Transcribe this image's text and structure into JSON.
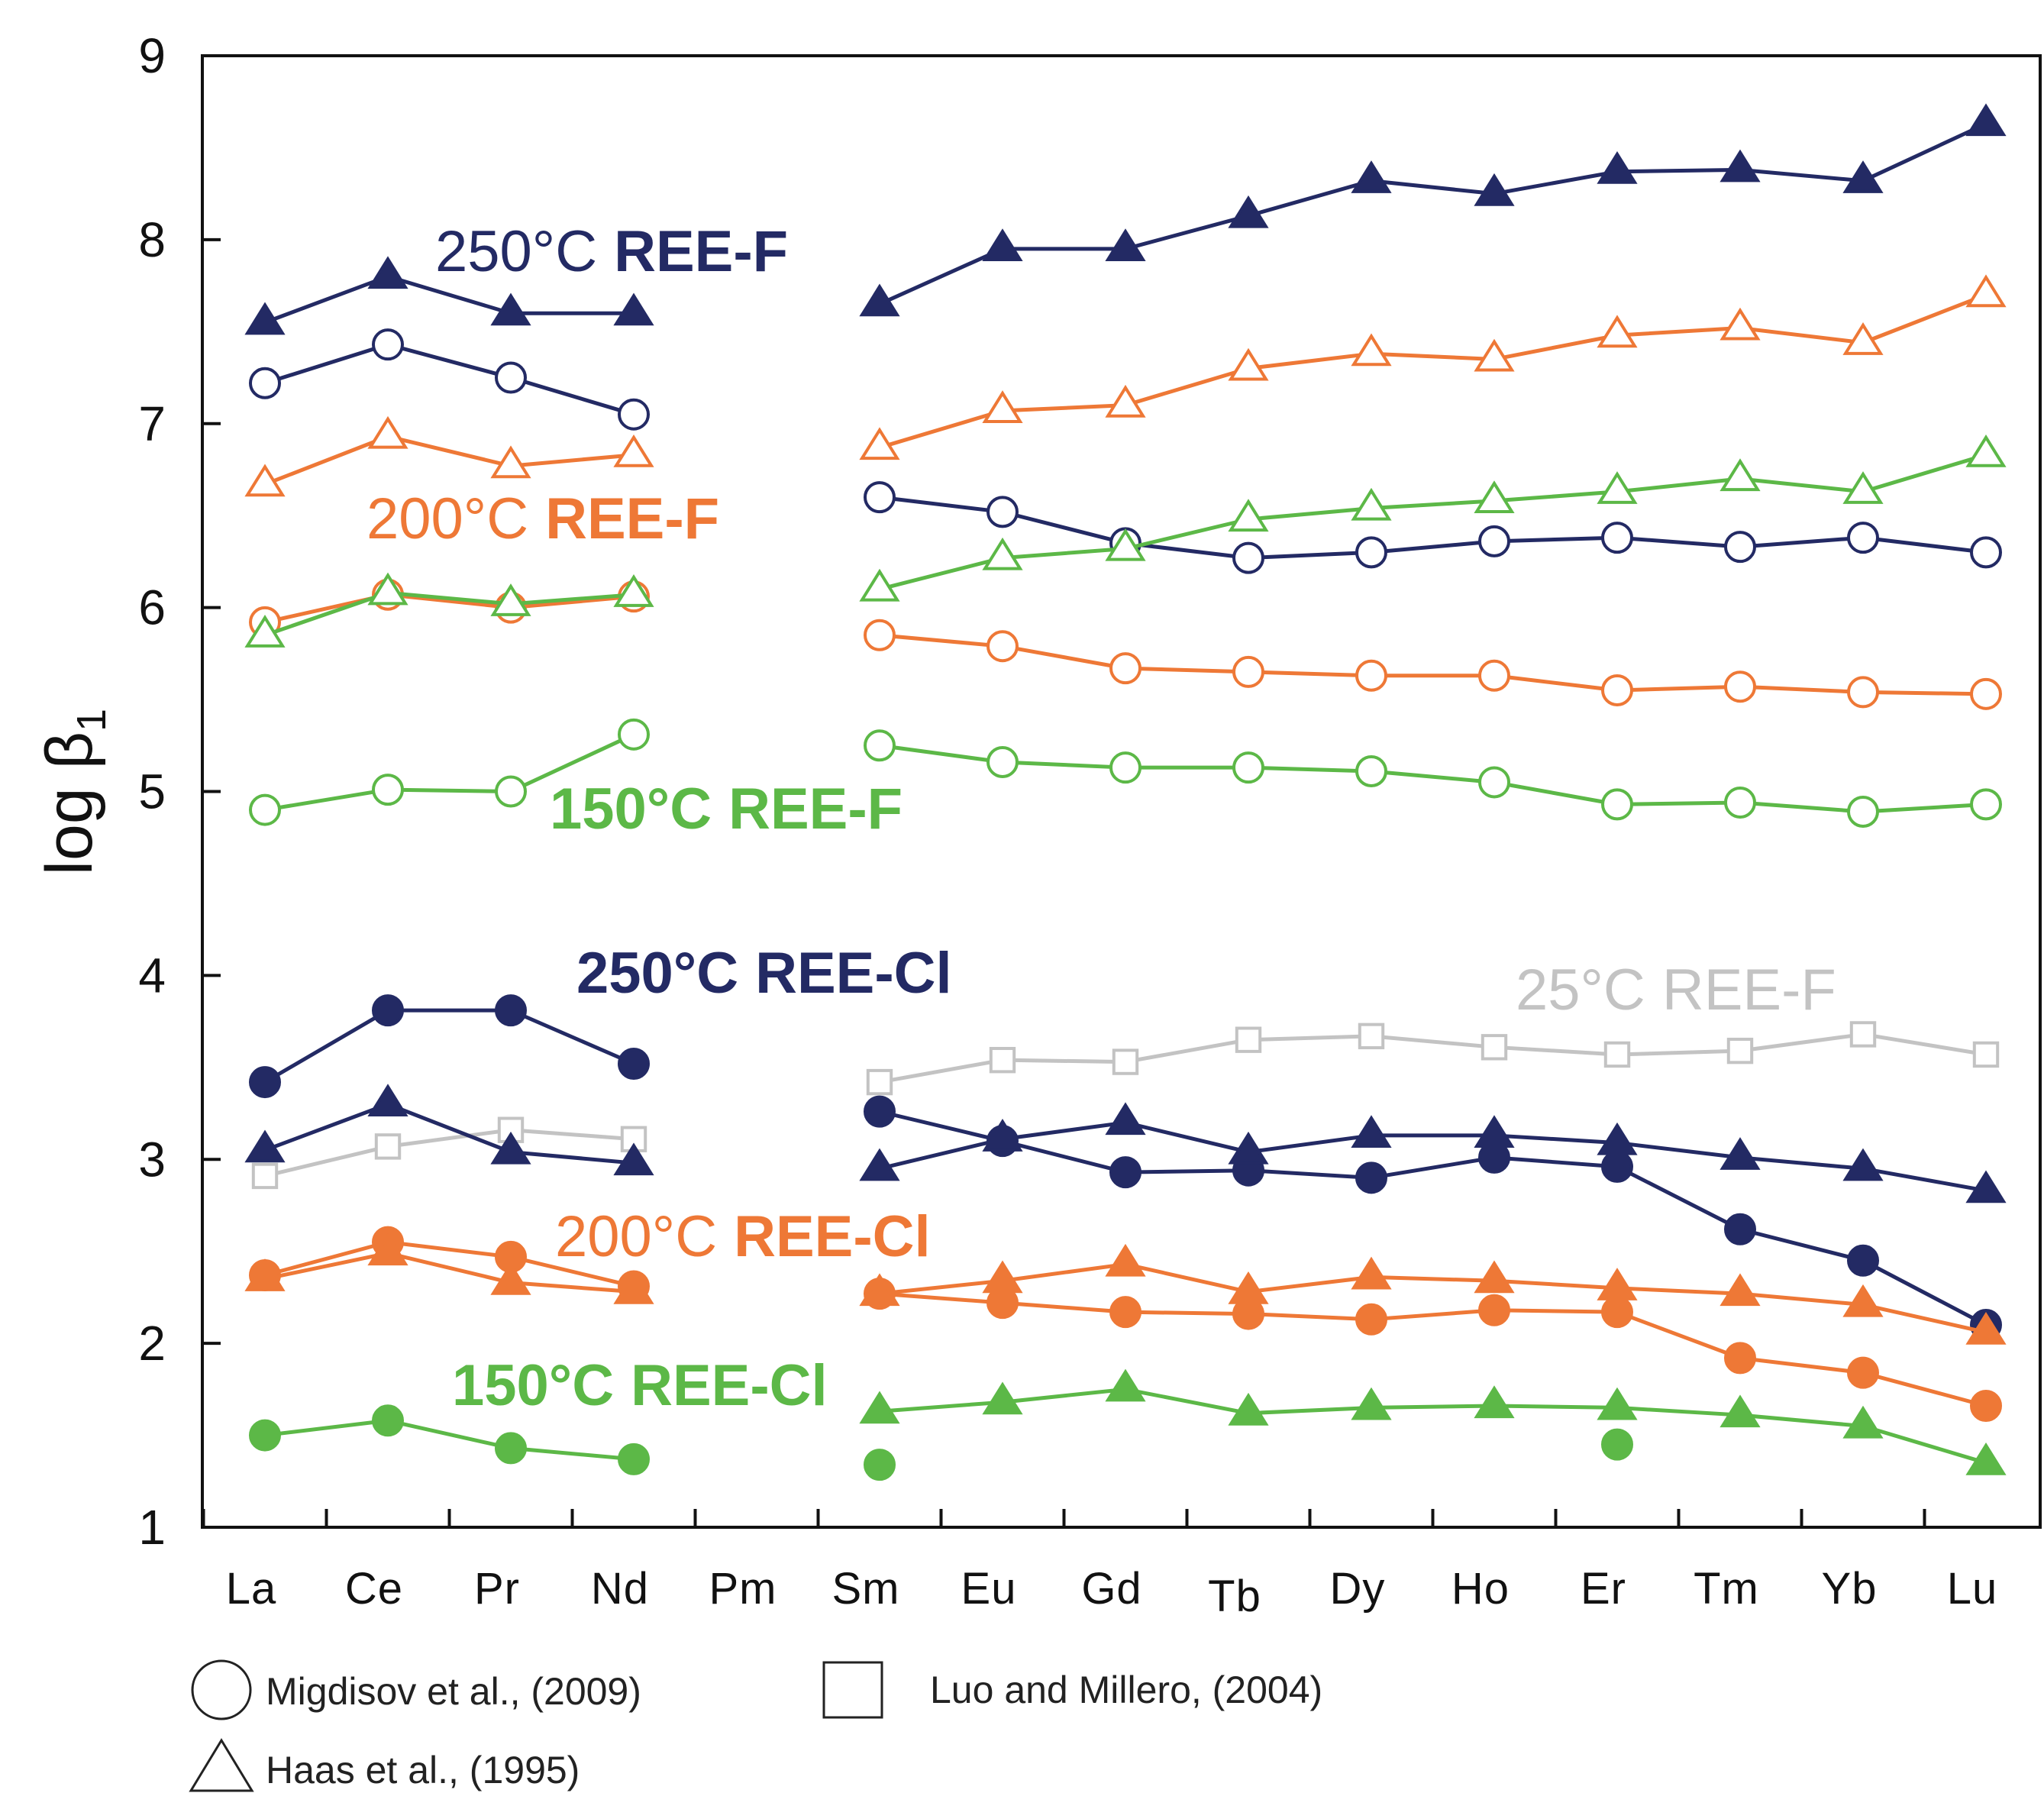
{
  "chart_data": {
    "type": "line",
    "ylabel": "log β",
    "ylabel_subscript": "1",
    "ylim": [
      1,
      9
    ],
    "yticks": [
      1,
      2,
      3,
      4,
      5,
      6,
      7,
      8,
      9
    ],
    "categories": [
      "La",
      "Ce",
      "Pr",
      "Nd",
      "Pm",
      "Sm",
      "Eu",
      "Gd",
      "Tb",
      "Dy",
      "Ho",
      "Er",
      "Tm",
      "Yb",
      "Lu"
    ],
    "colors": {
      "250": "#232a64",
      "200": "#ee7836",
      "150": "#5cb847",
      "25": "#c3c3c3"
    },
    "series": [
      {
        "temp": "250",
        "marker": "triangle",
        "fill": true,
        "values": [
          7.55,
          7.8,
          7.6,
          7.6,
          null,
          7.65,
          7.95,
          7.95,
          8.13,
          8.32,
          8.25,
          8.37,
          8.38,
          8.32,
          8.63
        ]
      },
      {
        "temp": "250",
        "marker": "circle",
        "fill": false,
        "values": [
          7.22,
          7.43,
          7.25,
          7.05,
          null,
          6.6,
          6.52,
          6.35,
          6.27,
          6.3,
          6.36,
          6.38,
          6.33,
          6.38,
          6.3
        ]
      },
      {
        "temp": "200",
        "marker": "triangle",
        "fill": false,
        "values": [
          6.67,
          6.93,
          6.77,
          6.83,
          null,
          6.87,
          7.07,
          7.1,
          7.3,
          7.38,
          7.35,
          7.48,
          7.52,
          7.44,
          7.7
        ]
      },
      {
        "temp": "200",
        "marker": "circle",
        "fill": false,
        "values": [
          5.92,
          6.07,
          6.0,
          6.06,
          null,
          5.85,
          5.79,
          5.67,
          5.65,
          5.63,
          5.63,
          5.55,
          5.57,
          5.54,
          5.53
        ]
      },
      {
        "temp": "150",
        "marker": "triangle",
        "fill": false,
        "values": [
          5.85,
          6.08,
          6.02,
          6.07,
          null,
          6.1,
          6.27,
          6.32,
          6.48,
          6.54,
          6.58,
          6.63,
          6.7,
          6.63,
          6.83
        ]
      },
      {
        "temp": "150",
        "marker": "circle",
        "fill": false,
        "values": [
          4.9,
          5.01,
          5.0,
          5.31,
          null,
          5.25,
          5.16,
          5.13,
          5.13,
          5.11,
          5.05,
          4.93,
          4.94,
          4.89,
          4.93
        ]
      },
      {
        "temp": "25",
        "marker": "square",
        "fill": false,
        "values": [
          2.91,
          3.07,
          3.16,
          3.11,
          null,
          3.42,
          3.54,
          3.53,
          3.65,
          3.67,
          3.61,
          3.57,
          3.59,
          3.68,
          3.57
        ]
      },
      {
        "temp": "250",
        "marker": "circle",
        "fill": true,
        "values": [
          3.42,
          3.81,
          3.81,
          3.52,
          null,
          3.26,
          3.1,
          2.93,
          2.94,
          2.9,
          3.01,
          2.96,
          2.62,
          2.45,
          2.1
        ]
      },
      {
        "temp": "250",
        "marker": "triangle",
        "fill": true,
        "values": [
          3.05,
          3.3,
          3.04,
          2.98,
          null,
          2.95,
          3.11,
          3.2,
          3.04,
          3.13,
          3.13,
          3.09,
          3.01,
          2.95,
          2.83
        ]
      },
      {
        "temp": "200",
        "marker": "circle",
        "fill": true,
        "values": [
          2.37,
          2.55,
          2.47,
          2.31,
          null,
          2.27,
          2.22,
          2.17,
          2.16,
          2.13,
          2.18,
          2.17,
          1.92,
          1.84,
          1.66
        ]
      },
      {
        "temp": "200",
        "marker": "triangle",
        "fill": true,
        "values": [
          2.35,
          2.49,
          2.33,
          2.28,
          null,
          2.27,
          2.34,
          2.43,
          2.28,
          2.36,
          2.34,
          2.3,
          2.27,
          2.21,
          2.06
        ]
      },
      {
        "temp": "150",
        "marker": "triangle",
        "fill": true,
        "values": [
          null,
          null,
          null,
          null,
          null,
          1.63,
          1.68,
          1.75,
          1.62,
          1.65,
          1.66,
          1.65,
          1.61,
          1.55,
          1.35
        ]
      },
      {
        "temp": "150",
        "marker": "circle",
        "fill": true,
        "values": [
          1.5,
          1.58,
          1.43,
          1.37,
          null,
          null,
          null,
          null,
          null,
          null,
          null,
          null,
          null,
          null,
          null
        ]
      },
      {
        "temp": "150",
        "marker": "circle",
        "fill": true,
        "connect": false,
        "values": [
          null,
          null,
          null,
          null,
          null,
          1.34,
          null,
          null,
          null,
          null,
          null,
          1.45,
          null,
          null,
          null
        ]
      }
    ],
    "annotations": [
      {
        "temp": "250",
        "normal": "250°C",
        "bold": "REE-F",
        "bold_temp": false
      },
      {
        "temp": "200",
        "normal": "200°C",
        "bold": "REE-F",
        "bold_temp": false
      },
      {
        "temp": "150",
        "normal": "150°C",
        "bold": "REE-F",
        "bold_temp": true
      },
      {
        "temp": "250",
        "normal": "250°C",
        "bold": "REE-Cl",
        "bold_temp": true
      },
      {
        "temp": "25",
        "normal": "25°C",
        "bold": "REE-F",
        "bold_temp": false,
        "all_light": true
      },
      {
        "temp": "200",
        "normal": "200°C",
        "bold": "REE-Cl",
        "bold_temp": false
      },
      {
        "temp": "150",
        "normal": "150°C",
        "bold": "REE-Cl",
        "bold_temp": true
      }
    ],
    "legend": [
      {
        "marker": "circle",
        "label": "Migdisov et al., (2009)"
      },
      {
        "marker": "square",
        "label": "Luo and Millero, (2004)"
      },
      {
        "marker": "triangle",
        "label": "Haas et al., (1995)"
      }
    ]
  }
}
